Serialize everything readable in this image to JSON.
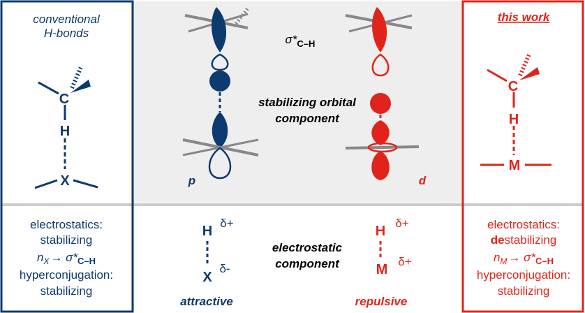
{
  "left": {
    "title": [
      "conventional",
      "H-bonds"
    ],
    "atoms": [
      "C",
      "H",
      "X"
    ],
    "notes": {
      "line1": "electrostatics:",
      "line2": "stabilizing",
      "hyper": [
        "n",
        "X",
        "→ σ*",
        "C–H"
      ],
      "line4": "hyperconjugation:",
      "line5": "stabilizing"
    }
  },
  "middle": {
    "sigma": [
      "σ*",
      "C–H"
    ],
    "orbital": [
      "stabilizing orbital",
      "component"
    ],
    "p": "p",
    "d": "d",
    "electrostatic": [
      "electrostatic",
      "component"
    ],
    "attractive": {
      "h": "H",
      "h_charge": "δ+",
      "x": "X",
      "x_charge": "δ-",
      "label": "attractive"
    },
    "repulsive": {
      "h": "H",
      "h_charge": "δ+",
      "m": "M",
      "m_charge": "δ+",
      "label": "repulsive"
    }
  },
  "right": {
    "title": "this work",
    "atoms": [
      "C",
      "H",
      "M"
    ],
    "notes": {
      "line1": "electrostatics:",
      "line2": [
        "de",
        "stabilizing"
      ],
      "hyper": [
        "n",
        "M",
        "→ σ*",
        "C–H"
      ],
      "line4": "hyperconjugation:",
      "line5": "stabilizing"
    }
  }
}
